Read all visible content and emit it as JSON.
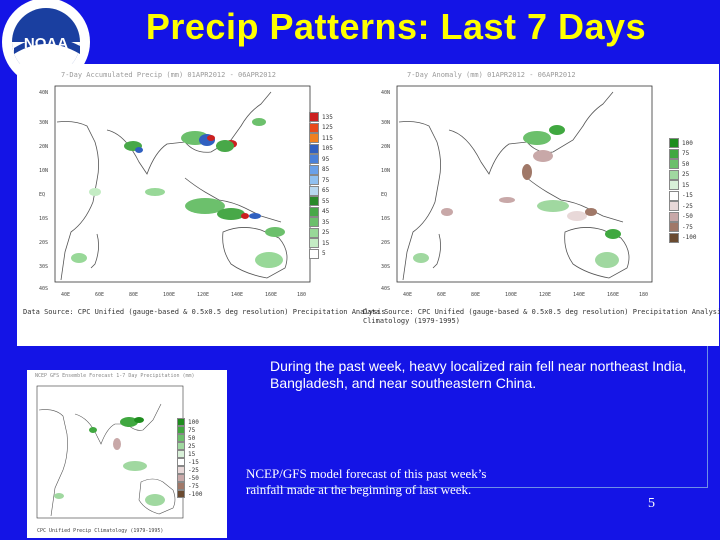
{
  "slide": {
    "title": "Precip Patterns: Last 7 Days",
    "page_number": "5"
  },
  "logo": {
    "acronym": "NOAA",
    "ring_text": "NATIONAL OCEANIC AND ATMOSPHERIC ADMINISTRATION"
  },
  "map_left": {
    "title": "7-Day Accumulated Precip (mm) 01APR2012 - 06APR2012",
    "source": "Data Source: CPC Unified (gauge-based & 0.5x0.5 deg resolution) Precipitation Analysis",
    "lat_labels": [
      "40N",
      "30N",
      "20N",
      "10N",
      "EQ",
      "10S",
      "20S",
      "30S",
      "40S"
    ],
    "lon_labels": [
      "40E",
      "60E",
      "80E",
      "100E",
      "120E",
      "140E",
      "160E",
      "180"
    ],
    "legend_values": [
      "135",
      "125",
      "115",
      "105",
      "95",
      "85",
      "75",
      "65",
      "55",
      "45",
      "35",
      "25",
      "15",
      "5"
    ],
    "legend_colors": [
      "#cc2020",
      "#e84a1a",
      "#f08020",
      "#3060c0",
      "#4a80d8",
      "#6aa0e8",
      "#90c0f0",
      "#b8d8f0",
      "#2a8a2a",
      "#48a848",
      "#6cc06c",
      "#98d898",
      "#c4ecc4",
      "#ffffff"
    ]
  },
  "map_right": {
    "title": "7-Day Anomaly (mm) 01APR2012 - 06APR2012",
    "source": "Data Source: CPC Unified (gauge-based & 0.5x0.5 deg resolution) Precipitation Analysis",
    "source2": "Climatology (1979-1995)",
    "lat_labels": [
      "40N",
      "30N",
      "20N",
      "10N",
      "EQ",
      "10S",
      "20S",
      "30S",
      "40S"
    ],
    "lon_labels": [
      "40E",
      "60E",
      "80E",
      "100E",
      "120E",
      "140E",
      "160E",
      "180"
    ],
    "legend_values": [
      "100",
      "75",
      "50",
      "25",
      "15",
      "-15",
      "-25",
      "-50",
      "-75",
      "-100"
    ],
    "legend_colors": [
      "#1e8c1e",
      "#40a840",
      "#6cc06c",
      "#a0d8a0",
      "#d8f0d8",
      "#ffffff",
      "#e8d8d8",
      "#c8a8a8",
      "#a07868",
      "#6a4a30"
    ]
  },
  "map_bottom": {
    "title": "NCEP GFS Ensemble Forecast 1-7 Day Precipitation (mm)",
    "source": "CPC Unified Precip Climatology (1979-1995)",
    "legend_values": [
      "100",
      "75",
      "50",
      "25",
      "15",
      "-15",
      "-25",
      "-50",
      "-75",
      "-100"
    ],
    "legend_colors": [
      "#1e8c1e",
      "#40a840",
      "#6cc06c",
      "#a0d8a0",
      "#d8f0d8",
      "#ffffff",
      "#e8d8d8",
      "#c8a8a8",
      "#a07868",
      "#6a4a30"
    ]
  },
  "text": {
    "summary": "During the past week, heavy localized rain fell near northeast India, Bangladesh, and near southeastern China.",
    "gfs_note": "NCEP/GFS model forecast of this past week’s rainfall made at the beginning of last week."
  }
}
